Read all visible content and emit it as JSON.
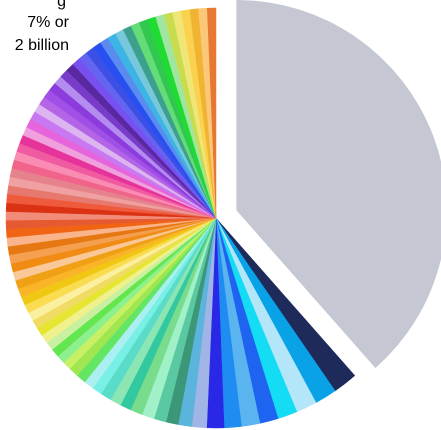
{
  "chart_data": {
    "type": "pie",
    "annotation_lines": [
      "g",
      "7% or",
      "2 billion"
    ],
    "slices": [
      {
        "value": 40.7,
        "color": "#c5c8d2",
        "exploded": true
      },
      {
        "value": 2.0,
        "color": "#1e2a5a"
      },
      {
        "value": 1.8,
        "color": "#0aa2e6"
      },
      {
        "value": 1.7,
        "color": "#b3e6f8"
      },
      {
        "value": 1.6,
        "color": "#14dcf5"
      },
      {
        "value": 1.5,
        "color": "#1e64f0"
      },
      {
        "value": 1.5,
        "color": "#5ab4f0"
      },
      {
        "value": 1.4,
        "color": "#1e8cf0"
      },
      {
        "value": 1.4,
        "color": "#2828e6"
      },
      {
        "value": 1.2,
        "color": "#a0b4e6"
      },
      {
        "value": 1.1,
        "color": "#5ab4dc"
      },
      {
        "value": 1.0,
        "color": "#3c9678"
      },
      {
        "value": 1.0,
        "color": "#5ac8a0"
      },
      {
        "value": 1.0,
        "color": "#a0f0c8"
      },
      {
        "value": 1.0,
        "color": "#78dc8c"
      },
      {
        "value": 0.9,
        "color": "#32c8a0"
      },
      {
        "value": 0.9,
        "color": "#8ce6b4"
      },
      {
        "value": 0.9,
        "color": "#5adcc8"
      },
      {
        "value": 0.8,
        "color": "#78f0e6"
      },
      {
        "value": 0.8,
        "color": "#aaf0f0"
      },
      {
        "value": 0.8,
        "color": "#64e664"
      },
      {
        "value": 0.8,
        "color": "#a0e650"
      },
      {
        "value": 0.7,
        "color": "#c8f064"
      },
      {
        "value": 0.7,
        "color": "#8cf08c"
      },
      {
        "value": 0.7,
        "color": "#64e650"
      },
      {
        "value": 0.7,
        "color": "#c8f0a0"
      },
      {
        "value": 0.7,
        "color": "#f0f08c"
      },
      {
        "value": 0.7,
        "color": "#e6e632"
      },
      {
        "value": 0.7,
        "color": "#f0dc64"
      },
      {
        "value": 0.7,
        "color": "#faf0a0"
      },
      {
        "value": 0.7,
        "color": "#fadc50"
      },
      {
        "value": 0.7,
        "color": "#f0c814"
      },
      {
        "value": 0.7,
        "color": "#fab428"
      },
      {
        "value": 0.7,
        "color": "#f0a014"
      },
      {
        "value": 0.7,
        "color": "#fac896"
      },
      {
        "value": 0.7,
        "color": "#f08c14"
      },
      {
        "value": 0.7,
        "color": "#f5a050"
      },
      {
        "value": 0.7,
        "color": "#e67814"
      },
      {
        "value": 0.7,
        "color": "#fab48c"
      },
      {
        "value": 0.7,
        "color": "#f06414"
      },
      {
        "value": 0.7,
        "color": "#e65a32"
      },
      {
        "value": 0.7,
        "color": "#f08c78"
      },
      {
        "value": 0.7,
        "color": "#dc3214"
      },
      {
        "value": 0.7,
        "color": "#f05a3c"
      },
      {
        "value": 0.7,
        "color": "#e6786e"
      },
      {
        "value": 0.7,
        "color": "#f0a0a0"
      },
      {
        "value": 0.7,
        "color": "#e6828c"
      },
      {
        "value": 0.7,
        "color": "#f0648c"
      },
      {
        "value": 0.7,
        "color": "#fa8cb4"
      },
      {
        "value": 0.7,
        "color": "#f05aa0"
      },
      {
        "value": 0.7,
        "color": "#e6329b"
      },
      {
        "value": 0.7,
        "color": "#f0a0dc"
      },
      {
        "value": 0.7,
        "color": "#e664dc"
      },
      {
        "value": 0.7,
        "color": "#c878f0"
      },
      {
        "value": 0.7,
        "color": "#dcb4f0"
      },
      {
        "value": 0.7,
        "color": "#b464e6"
      },
      {
        "value": 0.7,
        "color": "#a050e6"
      },
      {
        "value": 0.7,
        "color": "#8c3cdc"
      },
      {
        "value": 0.7,
        "color": "#b48cf0"
      },
      {
        "value": 0.7,
        "color": "#783cc8"
      },
      {
        "value": 0.7,
        "color": "#5a28a0"
      },
      {
        "value": 0.7,
        "color": "#7850f0"
      },
      {
        "value": 0.7,
        "color": "#6464f0"
      },
      {
        "value": 0.7,
        "color": "#3c50e6"
      },
      {
        "value": 0.7,
        "color": "#2850f0"
      },
      {
        "value": 0.7,
        "color": "#5a8cf0"
      },
      {
        "value": 0.7,
        "color": "#3cb4e6"
      },
      {
        "value": 0.7,
        "color": "#78c8dc"
      },
      {
        "value": 0.7,
        "color": "#3ca08c"
      },
      {
        "value": 0.7,
        "color": "#64dc78"
      },
      {
        "value": 0.7,
        "color": "#32c850"
      },
      {
        "value": 0.7,
        "color": "#1edc32"
      },
      {
        "value": 0.7,
        "color": "#a0e6a0"
      },
      {
        "value": 0.7,
        "color": "#c8dc50"
      },
      {
        "value": 0.7,
        "color": "#f0e678"
      },
      {
        "value": 0.7,
        "color": "#fad250"
      },
      {
        "value": 0.7,
        "color": "#f0b432"
      },
      {
        "value": 0.7,
        "color": "#fac878"
      },
      {
        "value": 0.7,
        "color": "#e67832"
      }
    ]
  }
}
